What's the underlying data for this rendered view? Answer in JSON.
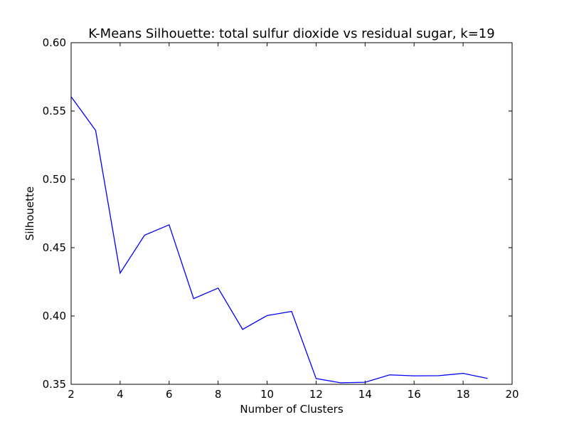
{
  "chart_data": {
    "type": "line",
    "title": "K-Means Silhouette: total sulfur dioxide vs residual sugar, k=19",
    "xlabel": "Number of Clusters",
    "ylabel": "Silhouette",
    "xlim": [
      2,
      20
    ],
    "ylim": [
      0.35,
      0.6
    ],
    "x_ticks": [
      2,
      4,
      6,
      8,
      10,
      12,
      14,
      16,
      18,
      20
    ],
    "y_ticks": [
      0.35,
      0.4,
      0.45,
      0.5,
      0.55,
      0.6
    ],
    "x_tick_labels": [
      "2",
      "4",
      "6",
      "8",
      "10",
      "12",
      "14",
      "16",
      "18",
      "20"
    ],
    "y_tick_labels": [
      "0.35",
      "0.40",
      "0.45",
      "0.50",
      "0.55",
      "0.60"
    ],
    "grid": false,
    "line_color": "#0000ff",
    "series": [
      {
        "x": [
          2,
          3,
          4,
          5,
          6,
          7,
          8,
          9,
          10,
          11,
          12,
          13,
          14,
          15,
          16,
          17,
          18,
          19
        ],
        "values": [
          0.5605,
          0.5358,
          0.4314,
          0.4592,
          0.4667,
          0.4127,
          0.4204,
          0.3902,
          0.4003,
          0.4033,
          0.3542,
          0.3511,
          0.3515,
          0.3569,
          0.3562,
          0.3563,
          0.358,
          0.3543
        ]
      }
    ]
  }
}
